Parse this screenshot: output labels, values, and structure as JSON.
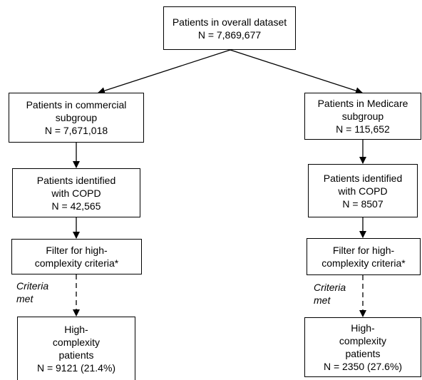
{
  "root": {
    "lines": [
      "Patients in overall dataset",
      "N = 7,869,677"
    ]
  },
  "left": {
    "subgroup": {
      "lines": [
        "Patients in commercial",
        "subgroup",
        "N = 7,671,018"
      ]
    },
    "copd": {
      "lines": [
        "Patients identified",
        "with COPD",
        "N = 42,565"
      ]
    },
    "filter": {
      "lines": [
        "Filter for high-",
        "complexity criteria*"
      ]
    },
    "criteria": [
      "Criteria",
      "met"
    ],
    "result": {
      "lines": [
        "High-",
        "complexity",
        "patients",
        "N = 9121 (21.4%)"
      ]
    }
  },
  "right": {
    "subgroup": {
      "lines": [
        "Patients in Medicare",
        "subgroup",
        "N = 115,652"
      ]
    },
    "copd": {
      "lines": [
        "Patients identified",
        "with COPD",
        "N = 8507"
      ]
    },
    "filter": {
      "lines": [
        "Filter for high-",
        "complexity criteria*"
      ]
    },
    "criteria": [
      "Criteria",
      "met"
    ],
    "result": {
      "lines": [
        "High-",
        "complexity",
        "patients",
        "N = 2350 (27.6%)"
      ]
    }
  }
}
